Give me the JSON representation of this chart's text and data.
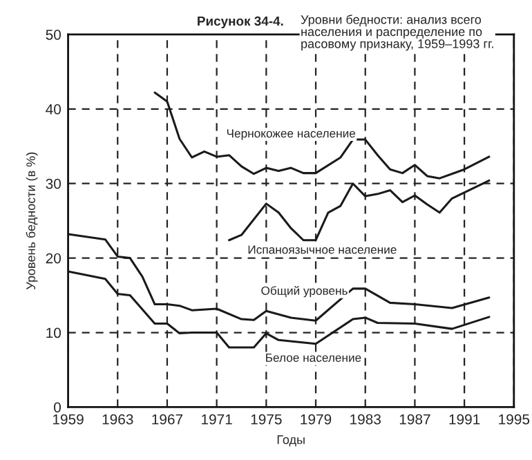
{
  "chart_data": {
    "type": "line",
    "title": "Рисунок 34-4.",
    "subtitle": "Уровни бедности: анализ всего\nнаселения и распределение по\nрасовому признаку, 1959–1993 гг.",
    "xlabel": "Годы",
    "ylabel": "Уровень бедности (в %)",
    "series": [
      {
        "name": "Чернокожее население",
        "color": "#1a1a1a",
        "x": [
          1966,
          1967,
          1968,
          1969,
          1970,
          1971,
          1972,
          1973,
          1974,
          1975,
          1976,
          1977,
          1978,
          1979,
          1981,
          1982,
          1983,
          1984,
          1985,
          1986,
          1987,
          1988,
          1989,
          1991,
          1993
        ],
        "values": [
          42.2,
          41,
          36,
          33.5,
          34.3,
          33.6,
          33.8,
          32.3,
          31.3,
          32.1,
          31.7,
          32.1,
          31.4,
          31.4,
          33.5,
          35.9,
          35.9,
          33.8,
          31.9,
          31.4,
          32.5,
          31,
          30.7,
          31.9,
          33.6
        ]
      },
      {
        "name": "Испаноязычное население",
        "color": "#1a1a1a",
        "x": [
          1972,
          1973,
          1975,
          1976,
          1977,
          1978,
          1979,
          1980,
          1981,
          1982,
          1983,
          1984,
          1985,
          1986,
          1987,
          1988,
          1989,
          1990,
          1993
        ],
        "values": [
          22.4,
          23.1,
          27.3,
          26.1,
          24,
          22.4,
          22.4,
          26.1,
          27,
          30,
          28.3,
          28.6,
          29.1,
          27.5,
          28.4,
          27.2,
          26.1,
          28,
          30.4
        ]
      },
      {
        "name": "Общий уровень",
        "color": "#1a1a1a",
        "x": [
          1959,
          1962,
          1963,
          1964,
          1965,
          1966,
          1967,
          1968,
          1969,
          1971,
          1973,
          1974,
          1975,
          1977,
          1979,
          1982,
          1983,
          1985,
          1987,
          1990,
          1993
        ],
        "values": [
          23.2,
          22.5,
          20.2,
          20,
          17.5,
          13.8,
          13.8,
          13.6,
          13,
          13.2,
          11.8,
          11.7,
          12.9,
          12,
          11.6,
          15.9,
          15.9,
          14,
          13.8,
          13.3,
          14.7
        ]
      },
      {
        "name": "Белое население",
        "color": "#1a1a1a",
        "x": [
          1959,
          1962,
          1963,
          1964,
          1966,
          1967,
          1968,
          1969,
          1971,
          1972,
          1974,
          1975,
          1976,
          1979,
          1982,
          1983,
          1984,
          1987,
          1990,
          1993
        ],
        "values": [
          18.2,
          17.2,
          15.2,
          15,
          11.2,
          11.2,
          9.9,
          10,
          10,
          8,
          8,
          9.9,
          9,
          8.5,
          11.8,
          12,
          11.3,
          11.2,
          10.5,
          12.1
        ]
      }
    ],
    "xlim": [
      1959,
      1995
    ],
    "xticks": [
      1959,
      1963,
      1967,
      1971,
      1975,
      1979,
      1983,
      1987,
      1991,
      1995
    ],
    "ylim": [
      0,
      50
    ],
    "yticks": [
      0,
      10,
      20,
      30,
      40,
      50
    ],
    "grid": true,
    "line_style": "solid"
  }
}
